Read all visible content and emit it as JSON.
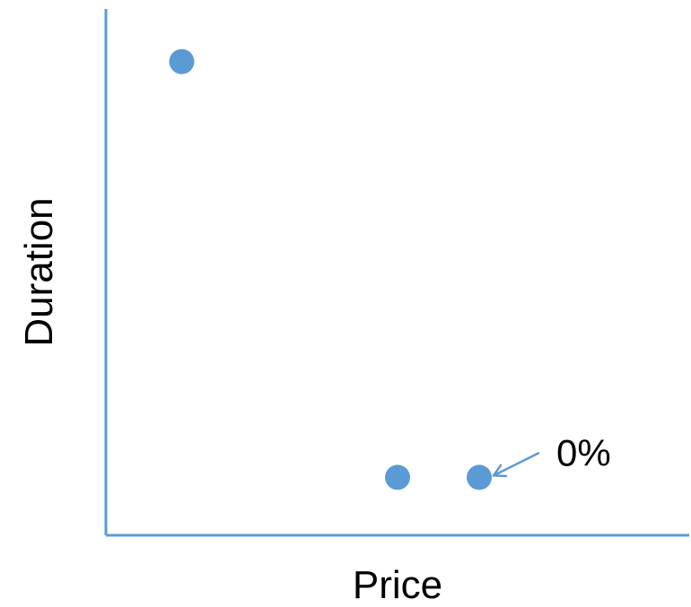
{
  "chart_data": {
    "type": "scatter",
    "title": "",
    "xlabel": "Price",
    "ylabel": "Duration",
    "xlim": [
      0,
      10
    ],
    "ylim": [
      0,
      10
    ],
    "grid": false,
    "legend": "none",
    "series": [
      {
        "points": [
          {
            "x": 1.3,
            "y": 9.0
          },
          {
            "x": 5.0,
            "y": 1.1
          },
          {
            "x": 6.4,
            "y": 1.1
          }
        ]
      }
    ],
    "annotations": [
      {
        "text": "0%",
        "target_point_index": 2
      }
    ],
    "colors": {
      "axis": "#5b9bd5",
      "point": "#5b9bd5",
      "text": "#000000"
    }
  }
}
